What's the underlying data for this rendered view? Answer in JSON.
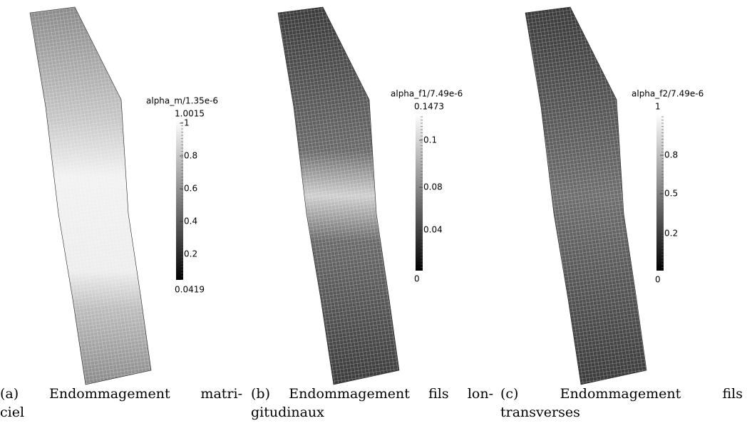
{
  "panels": [
    {
      "colorbar": {
        "title": "alpha_m/1.35e-6",
        "max_label": "1.0015",
        "min_label": "0.0419",
        "ticks": [
          "1",
          "0.8",
          "0.6",
          "0.4",
          "0.2"
        ]
      },
      "caption": {
        "lines": [
          "(a) Endommagement matri-",
          "ciel"
        ]
      }
    },
    {
      "colorbar": {
        "title": "alpha_f1/7.49e-6",
        "max_label": "0.1473",
        "min_label": "0",
        "ticks": [
          "0.1",
          "0.08",
          "0.04"
        ]
      },
      "caption": {
        "lines": [
          "(b) Endommagement fils lon-",
          "gitudinaux"
        ]
      }
    },
    {
      "colorbar": {
        "title": "alpha_f2/7.49e-6",
        "max_label": "1",
        "min_label": "0",
        "ticks": [
          "0.8",
          "0.5",
          "0.2"
        ]
      },
      "caption": {
        "lines": [
          "(c) Endommagement fils",
          "transverses"
        ]
      }
    }
  ]
}
